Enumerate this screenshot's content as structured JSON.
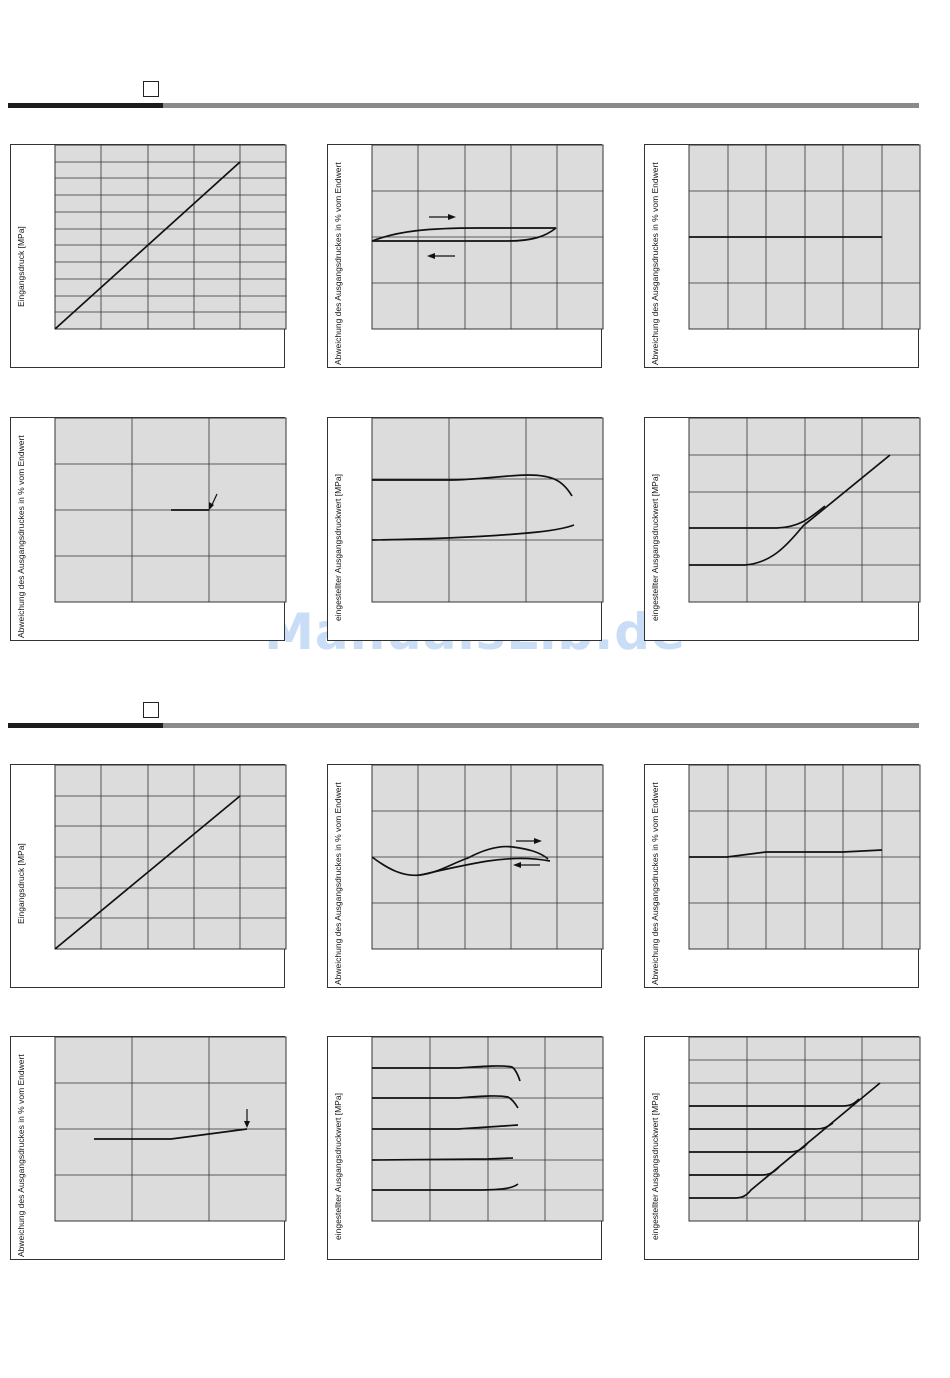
{
  "watermark": "ManualsLib.de",
  "labels": {
    "eingangsdruck": "Eingangsdruck [MPa]",
    "abweichung": "Abweichung des Ausgangsdruckes in % vom Endwert",
    "eingestellter": "eingestellter Ausgangsdruckwert [MPa]"
  },
  "chart_data": [
    {
      "section": 1,
      "type": "line",
      "ylabel": "Eingangsdruck [MPa]",
      "grid": true,
      "grid_cols": 5,
      "grid_rows": 11,
      "series": [
        {
          "points": [
            [
              0,
              0
            ],
            [
              4,
              11
            ]
          ]
        }
      ]
    },
    {
      "section": 1,
      "type": "line",
      "ylabel": "Abweichung des Ausgangsdruckes in % vom Endwert",
      "grid": true,
      "grid_cols": 5,
      "grid_rows": 4,
      "hysteresis": true,
      "series": [
        {
          "direction": "up",
          "points": [
            [
              0,
              2
            ],
            [
              1,
              2.2
            ],
            [
              2,
              2.25
            ],
            [
              4,
              2.25
            ]
          ]
        },
        {
          "direction": "down",
          "points": [
            [
              0,
              1.95
            ],
            [
              2.5,
              1.95
            ],
            [
              3.5,
              2.05
            ],
            [
              4,
              2.25
            ]
          ]
        }
      ]
    },
    {
      "section": 1,
      "type": "line",
      "ylabel": "Abweichung des Ausgangsdruckes in % vom Endwert",
      "grid": true,
      "grid_cols": 6,
      "grid_rows": 4,
      "series": [
        {
          "points": [
            [
              0,
              2
            ],
            [
              5,
              2
            ]
          ]
        }
      ]
    },
    {
      "section": 1,
      "type": "line",
      "ylabel": "Abweichung des Ausgangsdruckes in % vom Endwert",
      "grid": true,
      "grid_cols": 3,
      "grid_rows": 4,
      "arrow_marker": true,
      "series": [
        {
          "points": [
            [
              1.5,
              2
            ],
            [
              2,
              2
            ]
          ]
        }
      ]
    },
    {
      "section": 1,
      "type": "line",
      "ylabel": "eingestellter Ausgangsdruckwert [MPa]",
      "grid": true,
      "grid_cols": 3,
      "grid_rows": 3,
      "series": [
        {
          "points": [
            [
              0,
              2
            ],
            [
              1,
              2
            ],
            [
              2,
              2.08
            ],
            [
              2.4,
              2
            ],
            [
              2.6,
              1.8
            ]
          ]
        },
        {
          "points": [
            [
              0,
              1
            ],
            [
              1.5,
              1.05
            ],
            [
              2.3,
              1.15
            ],
            [
              2.6,
              1.25
            ]
          ]
        }
      ]
    },
    {
      "section": 1,
      "type": "line",
      "ylabel": "eingestellter Ausgangsdruckwert [MPa]",
      "grid": true,
      "grid_cols": 4,
      "grid_rows": 5,
      "series": [
        {
          "points": [
            [
              0,
              2
            ],
            [
              1.5,
              2
            ],
            [
              1.8,
              2.1
            ],
            [
              2,
              2.4
            ]
          ]
        },
        {
          "points": [
            [
              0,
              1
            ],
            [
              1,
              1
            ],
            [
              1.5,
              1.5
            ],
            [
              2,
              2.4
            ],
            [
              3.5,
              4
            ]
          ]
        }
      ]
    },
    {
      "section": 2,
      "type": "line",
      "ylabel": "Eingangsdruck [MPa]",
      "grid": true,
      "grid_cols": 5,
      "grid_rows": 6,
      "series": [
        {
          "points": [
            [
              0,
              0
            ],
            [
              4,
              5
            ]
          ]
        }
      ]
    },
    {
      "section": 2,
      "type": "line",
      "ylabel": "Abweichung des Ausgangsdruckes in % vom Endwert",
      "grid": true,
      "grid_cols": 5,
      "grid_rows": 4,
      "hysteresis": true,
      "series": [
        {
          "direction": "up",
          "points": [
            [
              0,
              2
            ],
            [
              1,
              1.6
            ],
            [
              2,
              1.9
            ],
            [
              3,
              2.2
            ],
            [
              4,
              2
            ]
          ]
        },
        {
          "direction": "down",
          "points": [
            [
              1,
              1.6
            ],
            [
              2,
              1.85
            ],
            [
              3,
              2
            ],
            [
              4,
              2
            ]
          ]
        }
      ]
    },
    {
      "section": 2,
      "type": "line",
      "ylabel": "Abweichung des Ausgangsdruckes in % vom Endwert",
      "grid": true,
      "grid_cols": 6,
      "grid_rows": 4,
      "series": [
        {
          "points": [
            [
              0,
              2
            ],
            [
              1,
              2
            ],
            [
              2,
              2.1
            ],
            [
              4,
              2.1
            ],
            [
              5,
              2.15
            ]
          ]
        }
      ]
    },
    {
      "section": 2,
      "type": "line",
      "ylabel": "Abweichung des Ausgangsdruckes in % vom Endwert",
      "grid": true,
      "grid_cols": 3,
      "grid_rows": 4,
      "arrow_marker": true,
      "series": [
        {
          "points": [
            [
              0.5,
              1.8
            ],
            [
              1.5,
              1.8
            ],
            [
              2.5,
              2
            ]
          ]
        }
      ]
    },
    {
      "section": 2,
      "type": "line",
      "ylabel": "eingestellter Ausgangsdruckwert [MPa]",
      "grid": true,
      "grid_cols": 4,
      "grid_rows": 5,
      "series": [
        {
          "points": [
            [
              0,
              5
            ],
            [
              2,
              5
            ]
          ]
        },
        {
          "points": [
            [
              0,
              4
            ],
            [
              2,
              4
            ]
          ]
        },
        {
          "points": [
            [
              0,
              3
            ],
            [
              2,
              3.05
            ]
          ]
        },
        {
          "points": [
            [
              0,
              2
            ],
            [
              2,
              2.05
            ]
          ]
        },
        {
          "points": [
            [
              0,
              1
            ],
            [
              2,
              1.1
            ]
          ]
        }
      ]
    },
    {
      "section": 2,
      "type": "line",
      "ylabel": "eingestellter Ausgangsdruckwert [MPa]",
      "grid": true,
      "grid_cols": 4,
      "grid_rows": 8,
      "series": [
        {
          "points": [
            [
              0,
              5
            ],
            [
              3,
              5
            ]
          ]
        },
        {
          "points": [
            [
              0,
              4
            ],
            [
              2.5,
              4
            ]
          ]
        },
        {
          "points": [
            [
              0,
              3
            ],
            [
              2,
              3
            ]
          ]
        },
        {
          "points": [
            [
              0,
              2
            ],
            [
              1.5,
              2
            ]
          ]
        },
        {
          "points": [
            [
              0,
              1
            ],
            [
              1,
              1
            ],
            [
              3.2,
              6
            ]
          ]
        }
      ]
    }
  ]
}
